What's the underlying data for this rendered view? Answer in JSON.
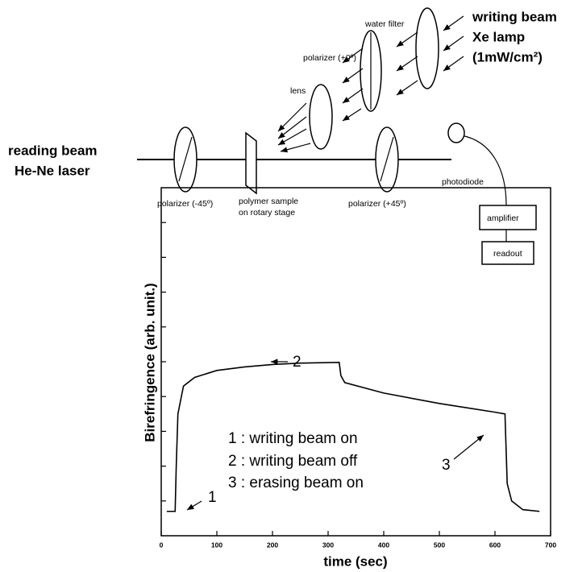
{
  "diagram": {
    "writing_beam": [
      "writing beam",
      "Xe lamp",
      "(1mW/cm²)"
    ],
    "water_filter": "water filter",
    "polarizer_0": "polarizer (+0º)",
    "lens": "lens",
    "reading_beam": [
      "reading beam",
      "He-Ne laser"
    ],
    "polarizer_m45": "polarizer (-45º)",
    "sample": [
      "polymer sample",
      "on rotary stage"
    ],
    "polarizer_p45": "polarizer (+45º)",
    "photodiode": "photodiode",
    "amplifier": "amplifier",
    "readout": "readout"
  },
  "chart_data": {
    "type": "line",
    "ylabel": "Birefringence (arb. unit.)",
    "xlabel": "time (sec)",
    "x": [
      10,
      25,
      27,
      30,
      40,
      60,
      100,
      150,
      200,
      250,
      320,
      323,
      330,
      400,
      500,
      600,
      618,
      622,
      630,
      650,
      680
    ],
    "values": [
      0.7,
      0.7,
      2.0,
      3.5,
      4.3,
      4.55,
      4.75,
      4.85,
      4.92,
      4.96,
      4.98,
      4.6,
      4.4,
      4.1,
      3.8,
      3.55,
      3.5,
      1.5,
      1.0,
      0.75,
      0.7
    ],
    "color": "#000000",
    "xlim": [
      0,
      700
    ],
    "xticks": [
      0,
      100,
      200,
      300,
      400,
      500,
      600,
      700
    ],
    "ylim": [
      0,
      10
    ],
    "yticks": [
      1,
      2,
      3,
      4,
      5,
      6,
      7,
      8,
      9
    ],
    "annotations": [
      "1 : writing beam on",
      "2 : writing beam off",
      "3 : erasing beam on",
      "1",
      "2",
      "3"
    ]
  }
}
